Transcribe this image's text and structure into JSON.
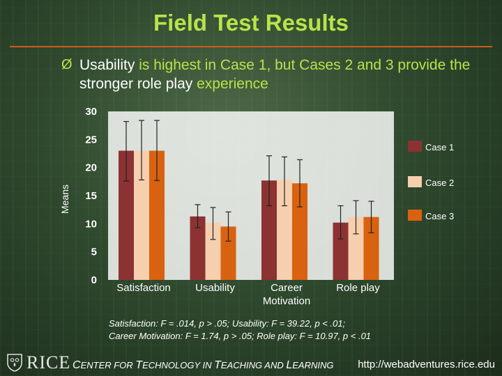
{
  "slide": {
    "title": "Field Test Results",
    "bullet": {
      "marker": "Ø",
      "segments": [
        {
          "text": "Usability",
          "highlight": false
        },
        {
          "text": " is highest in Case 1, but Cases 2 and 3 provide the ",
          "highlight": true
        },
        {
          "text": "stronger role play",
          "highlight": false
        },
        {
          "text": " experience",
          "highlight": true
        }
      ]
    },
    "stats_lines": [
      "Satisfaction: F = .014, p > .05; Usability: F = 39.22, p < .01;",
      "Career Motivation: F = 1.74, p > .05; Role play: F = 10.97, p < .01"
    ]
  },
  "footer": {
    "logo_text": "RICE",
    "center_parts": [
      {
        "text": "C",
        "big": true
      },
      {
        "text": "ENTER FOR ",
        "big": false
      },
      {
        "text": "T",
        "big": true
      },
      {
        "text": "ECHNOLOGY IN ",
        "big": false
      },
      {
        "text": "T",
        "big": true
      },
      {
        "text": "EACHING AND ",
        "big": false
      },
      {
        "text": "L",
        "big": true
      },
      {
        "text": "EARNING",
        "big": false
      }
    ],
    "url": "http://webadventures.rice.edu"
  },
  "colors": {
    "title": "#b8e34a",
    "rule": "#d05a18",
    "plot_bg": "#ffffff"
  },
  "chart_data": {
    "type": "bar",
    "title": "",
    "xlabel": "",
    "ylabel": "Means",
    "ylim": [
      0,
      30
    ],
    "yticks": [
      0,
      5,
      10,
      15,
      20,
      25,
      30
    ],
    "categories": [
      "Satisfaction",
      "Usability",
      "Career Motivation",
      "Role play"
    ],
    "legend_position": "right",
    "series": [
      {
        "name": "Case 1",
        "color": "#8c3232",
        "values": [
          23.0,
          11.3,
          17.7,
          10.2
        ],
        "err_low": [
          17.6,
          9.3,
          13.2,
          7.3
        ],
        "err_high": [
          28.2,
          13.4,
          22.1,
          13.2
        ]
      },
      {
        "name": "Case 2",
        "color": "#f6cfae",
        "values": [
          23.0,
          10.2,
          17.8,
          11.2
        ],
        "err_low": [
          17.8,
          7.2,
          13.2,
          8.2
        ],
        "err_high": [
          28.4,
          12.9,
          21.9,
          14.1
        ]
      },
      {
        "name": "Case 3",
        "color": "#d8620f",
        "values": [
          23.0,
          9.5,
          17.2,
          11.2
        ],
        "err_low": [
          17.7,
          6.9,
          13.0,
          8.4
        ],
        "err_high": [
          28.4,
          12.1,
          21.4,
          14.0
        ]
      }
    ]
  }
}
